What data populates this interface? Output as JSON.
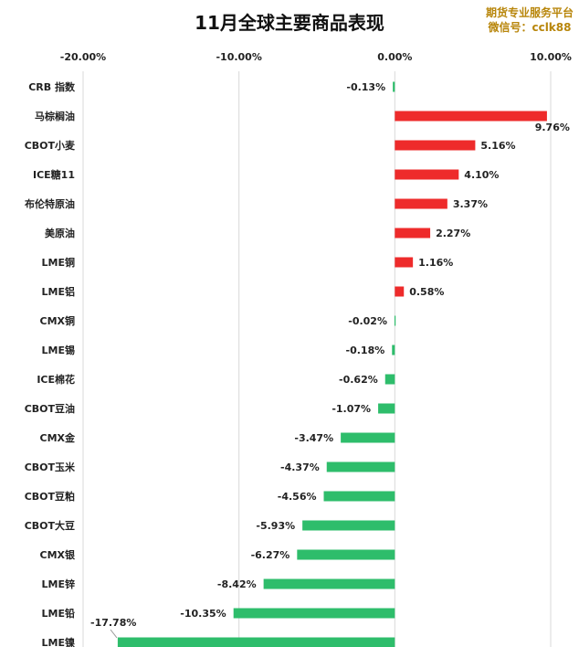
{
  "chart_data": {
    "type": "bar",
    "orientation": "horizontal",
    "title": "11月全球主要商品表现",
    "xlabel": "",
    "ylabel": "",
    "xlim": [
      -20,
      10
    ],
    "xticks": [
      -20,
      -10,
      0,
      10
    ],
    "xtick_labels": [
      "-20.00%",
      "-10.00%",
      "0.00%",
      "10.00%"
    ],
    "grid": true,
    "legend": "none",
    "positive_color": "#ee2b2b",
    "negative_color": "#2ebd6b",
    "categories": [
      "CRB 指数",
      "马棕榈油",
      "CBOT小麦",
      "ICE糖11",
      "布伦特原油",
      "美原油",
      "LME铜",
      "LME铝",
      "CMX铜",
      "LME锡",
      "ICE棉花",
      "CBOT豆油",
      "CMX金",
      "CBOT玉米",
      "CBOT豆粕",
      "CBOT大豆",
      "CMX银",
      "LME锌",
      "LME铅",
      "LME镍"
    ],
    "values": [
      -0.13,
      9.76,
      5.16,
      4.1,
      3.37,
      2.27,
      1.16,
      0.58,
      -0.02,
      -0.18,
      -0.62,
      -1.07,
      -3.47,
      -4.37,
      -4.56,
      -5.93,
      -6.27,
      -8.42,
      -10.35,
      -17.78
    ],
    "value_labels": [
      "-0.13%",
      "9.76%",
      "5.16%",
      "4.10%",
      "3.37%",
      "2.27%",
      "1.16%",
      "0.58%",
      "-0.02%",
      "-0.18%",
      "-0.62%",
      "-1.07%",
      "-3.47%",
      "-4.37%",
      "-4.56%",
      "-5.93%",
      "-6.27%",
      "-8.42%",
      "-10.35%",
      "-17.78%"
    ]
  },
  "watermark": {
    "line1": "期货专业服务平台",
    "line2": "微信号：cclk88"
  }
}
